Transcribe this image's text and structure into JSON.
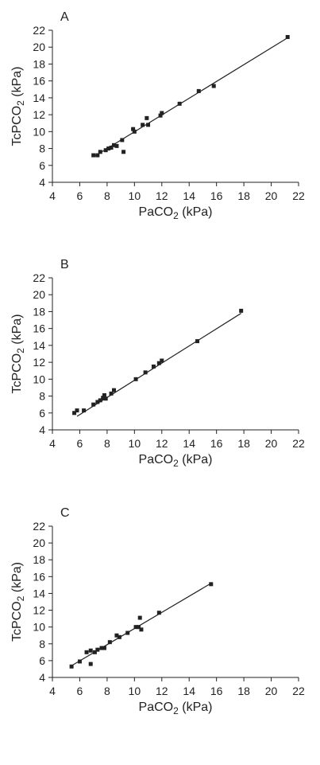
{
  "chart_data": [
    {
      "type": "scatter",
      "panel_label": "A",
      "xlabel": "PaCO2 (kPa)",
      "ylabel": "TcPCO2 (kPa)",
      "xlim": [
        4,
        22
      ],
      "ylim": [
        4,
        22
      ],
      "xticks": [
        4,
        6,
        8,
        10,
        12,
        14,
        16,
        18,
        20,
        22
      ],
      "yticks": [
        4,
        6,
        8,
        10,
        12,
        14,
        16,
        18,
        20,
        22
      ],
      "points": [
        [
          7.0,
          7.2
        ],
        [
          7.3,
          7.2
        ],
        [
          7.5,
          7.6
        ],
        [
          7.9,
          7.8
        ],
        [
          8.1,
          8.0
        ],
        [
          8.3,
          8.1
        ],
        [
          8.5,
          8.4
        ],
        [
          8.7,
          8.3
        ],
        [
          9.1,
          9.0
        ],
        [
          9.2,
          7.6
        ],
        [
          9.9,
          10.3
        ],
        [
          10.0,
          10.0
        ],
        [
          10.6,
          10.8
        ],
        [
          10.9,
          11.6
        ],
        [
          11.0,
          10.8
        ],
        [
          11.9,
          11.9
        ],
        [
          12.0,
          12.2
        ],
        [
          13.3,
          13.3
        ],
        [
          14.7,
          14.8
        ],
        [
          15.8,
          15.4
        ],
        [
          21.2,
          21.2
        ]
      ],
      "fit_line": [
        [
          7.0,
          7.0
        ],
        [
          21.2,
          21.1
        ]
      ]
    },
    {
      "type": "scatter",
      "panel_label": "B",
      "xlabel": "PaCO2 (kPa)",
      "ylabel": "TcPCO2 (kPa)",
      "xlim": [
        4,
        22
      ],
      "ylim": [
        4,
        22
      ],
      "xticks": [
        4,
        6,
        8,
        10,
        12,
        14,
        16,
        18,
        20,
        22
      ],
      "yticks": [
        4,
        6,
        8,
        10,
        12,
        14,
        16,
        18,
        20,
        22
      ],
      "points": [
        [
          5.6,
          6.0
        ],
        [
          5.8,
          6.3
        ],
        [
          6.3,
          6.3
        ],
        [
          7.0,
          7.0
        ],
        [
          7.3,
          7.3
        ],
        [
          7.5,
          7.5
        ],
        [
          7.7,
          7.8
        ],
        [
          7.8,
          8.1
        ],
        [
          7.9,
          7.7
        ],
        [
          8.3,
          8.3
        ],
        [
          8.5,
          8.7
        ],
        [
          10.1,
          10.0
        ],
        [
          10.8,
          10.8
        ],
        [
          11.4,
          11.5
        ],
        [
          11.8,
          11.9
        ],
        [
          12.0,
          12.2
        ],
        [
          14.6,
          14.5
        ],
        [
          17.8,
          18.1
        ]
      ],
      "fit_line": [
        [
          5.8,
          5.6
        ],
        [
          17.8,
          17.8
        ]
      ]
    },
    {
      "type": "scatter",
      "panel_label": "C",
      "xlabel": "PaCO2 (kPa)",
      "ylabel": "TcPCO2 (kPa)",
      "xlim": [
        4,
        22
      ],
      "ylim": [
        4,
        22
      ],
      "xticks": [
        4,
        6,
        8,
        10,
        12,
        14,
        16,
        18,
        20,
        22
      ],
      "yticks": [
        4,
        6,
        8,
        10,
        12,
        14,
        16,
        18,
        20,
        22
      ],
      "points": [
        [
          5.4,
          5.3
        ],
        [
          6.0,
          5.9
        ],
        [
          6.5,
          7.0
        ],
        [
          6.8,
          7.2
        ],
        [
          6.8,
          5.6
        ],
        [
          7.1,
          7.0
        ],
        [
          7.3,
          7.3
        ],
        [
          7.6,
          7.5
        ],
        [
          7.8,
          7.5
        ],
        [
          8.2,
          8.2
        ],
        [
          8.7,
          9.0
        ],
        [
          8.9,
          8.8
        ],
        [
          9.5,
          9.3
        ],
        [
          10.1,
          10.0
        ],
        [
          10.3,
          10.0
        ],
        [
          10.4,
          11.1
        ],
        [
          10.5,
          9.7
        ],
        [
          11.8,
          11.7
        ],
        [
          15.6,
          15.1
        ]
      ],
      "fit_line": [
        [
          5.4,
          5.4
        ],
        [
          15.6,
          15.2
        ]
      ]
    }
  ]
}
